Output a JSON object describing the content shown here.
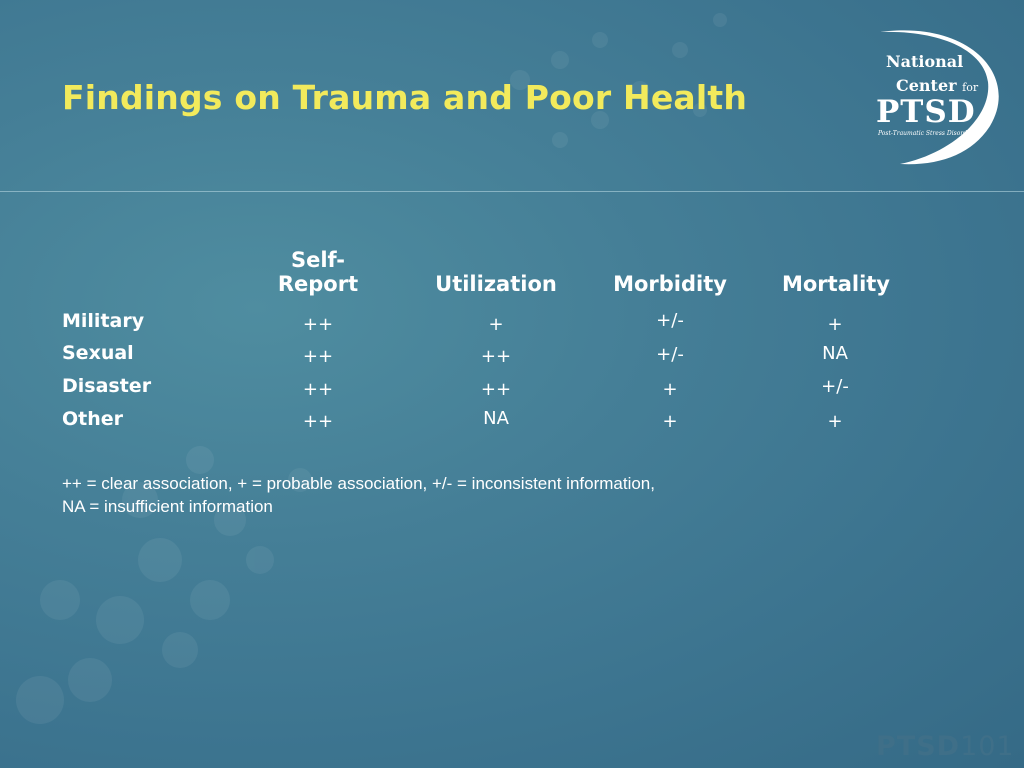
{
  "slide": {
    "title": "Findings on Trauma and Poor Health"
  },
  "logo": {
    "line1": "National",
    "line2": "Center",
    "line2_for": "for",
    "line3": "PTSD",
    "line4": "Post-Traumatic Stress Disorder"
  },
  "table": {
    "columns": [
      "Self-",
      "Report",
      "Utilization",
      "Morbidity",
      "Mortality"
    ],
    "rows": [
      {
        "label": "Military",
        "values": [
          "++",
          "+",
          "+/-",
          "+"
        ]
      },
      {
        "label": "Sexual",
        "values": [
          "++",
          "++",
          "+/-",
          "NA"
        ]
      },
      {
        "label": "Disaster",
        "values": [
          "++",
          "++",
          "+",
          "+/-"
        ]
      },
      {
        "label": "Other",
        "values": [
          "++",
          "NA",
          "+",
          "+"
        ]
      }
    ]
  },
  "legend": {
    "line1": "++ = clear association, + = probable association, +/- = inconsistent information,",
    "line2": "NA = insufficient information"
  },
  "footer": {
    "brand_bold": "PTSD",
    "brand_num": "101"
  },
  "colors": {
    "background": "#457f97",
    "title": "#f2ea5c",
    "text": "#ffffff"
  }
}
